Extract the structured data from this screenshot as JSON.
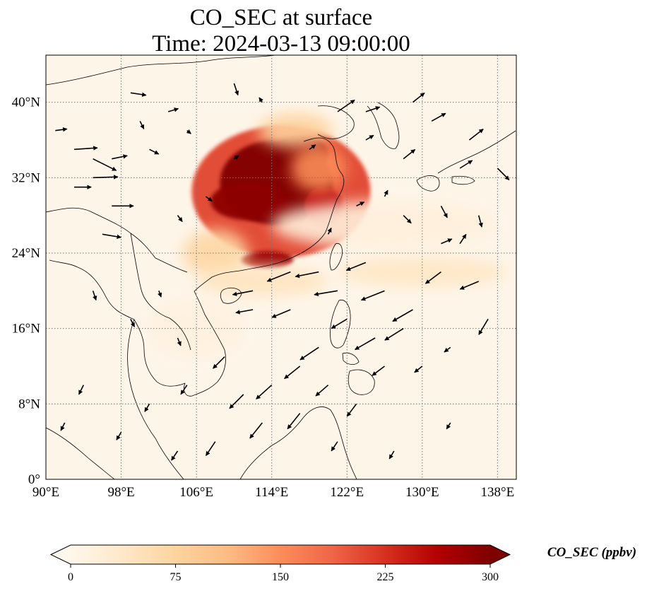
{
  "title": {
    "line1": "CO_SEC at surface",
    "line2": "Time: 2024-03-13 09:00:00"
  },
  "map": {
    "variable": "CO_SEC",
    "level": "surface",
    "projection": "PlateCarree",
    "lon_range": [
      90,
      140
    ],
    "lat_range": [
      0,
      45
    ],
    "gridlines": true,
    "xticks": [
      {
        "value": 90,
        "label": "90°E"
      },
      {
        "value": 98,
        "label": "98°E"
      },
      {
        "value": 106,
        "label": "106°E"
      },
      {
        "value": 114,
        "label": "114°E"
      },
      {
        "value": 122,
        "label": "122°E"
      },
      {
        "value": 130,
        "label": "130°E"
      },
      {
        "value": 138,
        "label": "138°E"
      }
    ],
    "yticks": [
      {
        "value": 0,
        "label": "0°"
      },
      {
        "value": 8,
        "label": "8°N"
      },
      {
        "value": 16,
        "label": "16°N"
      },
      {
        "value": 24,
        "label": "24°N"
      },
      {
        "value": 32,
        "label": "32°N"
      },
      {
        "value": 40,
        "label": "40°N"
      }
    ],
    "plumes": [
      {
        "lon": 115.0,
        "lat": 30.5,
        "rlon": 9.5,
        "rlat": 7.0,
        "value": 210
      },
      {
        "lon": 114.5,
        "lat": 31.5,
        "rlon": 6.0,
        "rlat": 4.5,
        "value": 300
      },
      {
        "lon": 117.0,
        "lat": 34.5,
        "rlon": 3.0,
        "rlat": 2.0,
        "value": 300
      },
      {
        "lon": 111.5,
        "lat": 29.5,
        "rlon": 4.0,
        "rlat": 2.0,
        "value": 290
      },
      {
        "lon": 119.5,
        "lat": 29.0,
        "rlon": 2.0,
        "rlat": 2.0,
        "value": 250
      },
      {
        "lon": 113.5,
        "lat": 23.3,
        "rlon": 2.8,
        "rlat": 0.9,
        "value": 280
      },
      {
        "lon": 116.5,
        "lat": 37.0,
        "rlon": 4.0,
        "rlat": 1.8,
        "value": 80
      },
      {
        "lon": 119.0,
        "lat": 33.0,
        "rlon": 3.0,
        "rlat": 2.5,
        "value": 150
      },
      {
        "lon": 108.0,
        "lat": 24.0,
        "rlon": 3.5,
        "rlat": 2.5,
        "value": 70
      },
      {
        "lon": 113.0,
        "lat": 21.0,
        "rlon": 7.0,
        "rlat": 1.6,
        "value": 45
      },
      {
        "lon": 130.0,
        "lat": 22.0,
        "rlon": 9.0,
        "rlat": 1.6,
        "value": 40
      },
      {
        "lon": 126.0,
        "lat": 27.0,
        "rlon": 12.0,
        "rlat": 2.5,
        "value": 18
      },
      {
        "lon": 106.0,
        "lat": 16.0,
        "rlon": 5.0,
        "rlat": 3.0,
        "value": 15
      }
    ],
    "wind_vectors": [
      {
        "lon": 91,
        "lat": 37,
        "u": 1.5,
        "v": 0.2
      },
      {
        "lon": 93,
        "lat": 35,
        "u": 3.0,
        "v": 0.2
      },
      {
        "lon": 93,
        "lat": 31,
        "u": 2.2,
        "v": 0.0
      },
      {
        "lon": 95,
        "lat": 34,
        "u": 3.0,
        "v": -1.5
      },
      {
        "lon": 95,
        "lat": 32,
        "u": 3.2,
        "v": 0.1
      },
      {
        "lon": 97,
        "lat": 34,
        "u": 2.0,
        "v": 0.4
      },
      {
        "lon": 97,
        "lat": 29,
        "u": 2.8,
        "v": 0.0
      },
      {
        "lon": 96,
        "lat": 26,
        "u": 2.4,
        "v": -0.4
      },
      {
        "lon": 99,
        "lat": 41,
        "u": 2.0,
        "v": -0.3
      },
      {
        "lon": 100,
        "lat": 38,
        "u": 0.5,
        "v": -1.0
      },
      {
        "lon": 101,
        "lat": 35,
        "u": 1.2,
        "v": -0.6
      },
      {
        "lon": 103,
        "lat": 39,
        "u": 1.3,
        "v": 0.4
      },
      {
        "lon": 105,
        "lat": 37,
        "u": 0.5,
        "v": -0.4
      },
      {
        "lon": 110,
        "lat": 42,
        "u": 0.5,
        "v": -1.5
      },
      {
        "lon": 113,
        "lat": 40,
        "u": -0.4,
        "v": 0.6
      },
      {
        "lon": 121,
        "lat": 39,
        "u": 2.2,
        "v": 1.5
      },
      {
        "lon": 124,
        "lat": 39,
        "u": 1.8,
        "v": 0.6
      },
      {
        "lon": 124,
        "lat": 36,
        "u": 1.0,
        "v": 0.6
      },
      {
        "lon": 129,
        "lat": 40,
        "u": 1.5,
        "v": 1.2
      },
      {
        "lon": 131,
        "lat": 38,
        "u": 1.8,
        "v": 1.0
      },
      {
        "lon": 135,
        "lat": 36,
        "u": 1.8,
        "v": 1.4
      },
      {
        "lon": 138,
        "lat": 33,
        "u": 1.5,
        "v": -1.5
      },
      {
        "lon": 134,
        "lat": 33,
        "u": 1.6,
        "v": 1.0
      },
      {
        "lon": 128,
        "lat": 34,
        "u": 1.5,
        "v": 1.2
      },
      {
        "lon": 132,
        "lat": 29,
        "u": 0.8,
        "v": -1.5
      },
      {
        "lon": 136,
        "lat": 28,
        "u": 0.4,
        "v": -1.5
      },
      {
        "lon": 134,
        "lat": 25,
        "u": 0.8,
        "v": 1.2
      },
      {
        "lon": 132,
        "lat": 25,
        "u": 1.4,
        "v": 0.6
      },
      {
        "lon": 128,
        "lat": 28,
        "u": 1.0,
        "v": -1.0
      },
      {
        "lon": 126,
        "lat": 30,
        "u": 0.4,
        "v": 0.8
      },
      {
        "lon": 116,
        "lat": 22,
        "u": -3.0,
        "v": -1.2
      },
      {
        "lon": 119,
        "lat": 22,
        "u": -3.0,
        "v": -0.6
      },
      {
        "lon": 121,
        "lat": 20,
        "u": -3.0,
        "v": -0.5
      },
      {
        "lon": 124,
        "lat": 23,
        "u": -2.5,
        "v": -1.0
      },
      {
        "lon": 126,
        "lat": 20,
        "u": -3.0,
        "v": -1.2
      },
      {
        "lon": 129,
        "lat": 18,
        "u": -2.6,
        "v": -1.5
      },
      {
        "lon": 132,
        "lat": 22,
        "u": -2.0,
        "v": -1.5
      },
      {
        "lon": 136,
        "lat": 21,
        "u": -2.4,
        "v": -1.0
      },
      {
        "lon": 137,
        "lat": 17,
        "u": -1.2,
        "v": -2.0
      },
      {
        "lon": 128,
        "lat": 16,
        "u": -2.4,
        "v": -1.5
      },
      {
        "lon": 125,
        "lat": 15,
        "u": -2.6,
        "v": -1.5
      },
      {
        "lon": 122,
        "lat": 17,
        "u": -2.0,
        "v": -1.2
      },
      {
        "lon": 112,
        "lat": 20,
        "u": -2.6,
        "v": -0.5
      },
      {
        "lon": 112,
        "lat": 18,
        "u": -2.2,
        "v": -0.4
      },
      {
        "lon": 116,
        "lat": 18,
        "u": -2.4,
        "v": -1.0
      },
      {
        "lon": 119,
        "lat": 14,
        "u": -2.4,
        "v": -1.6
      },
      {
        "lon": 117,
        "lat": 12,
        "u": -2.0,
        "v": -1.6
      },
      {
        "lon": 114,
        "lat": 10,
        "u": -2.0,
        "v": -1.8
      },
      {
        "lon": 111,
        "lat": 9,
        "u": -1.8,
        "v": -1.8
      },
      {
        "lon": 113,
        "lat": 6,
        "u": -1.6,
        "v": -2.0
      },
      {
        "lon": 117,
        "lat": 7,
        "u": -1.6,
        "v": -2.0
      },
      {
        "lon": 109,
        "lat": 13,
        "u": -1.5,
        "v": -1.5
      },
      {
        "lon": 105,
        "lat": 10,
        "u": -0.8,
        "v": -1.2
      },
      {
        "lon": 101,
        "lat": 8,
        "u": -0.6,
        "v": -1.0
      },
      {
        "lon": 108,
        "lat": 4,
        "u": -1.2,
        "v": -1.8
      },
      {
        "lon": 104,
        "lat": 3,
        "u": -0.8,
        "v": -1.2
      },
      {
        "lon": 98,
        "lat": 5,
        "u": -0.6,
        "v": -1.0
      },
      {
        "lon": 94,
        "lat": 10,
        "u": -0.6,
        "v": -1.2
      },
      {
        "lon": 92,
        "lat": 6,
        "u": -0.5,
        "v": -1.0
      },
      {
        "lon": 95,
        "lat": 20,
        "u": 0.4,
        "v": -1.2
      },
      {
        "lon": 99,
        "lat": 17,
        "u": 0.5,
        "v": -1.0
      },
      {
        "lon": 102,
        "lat": 20,
        "u": 0.3,
        "v": -0.8
      },
      {
        "lon": 104,
        "lat": 15,
        "u": 0.4,
        "v": -1.0
      },
      {
        "lon": 120,
        "lat": 10,
        "u": -1.6,
        "v": -1.4
      },
      {
        "lon": 123,
        "lat": 8,
        "u": -1.2,
        "v": -1.6
      },
      {
        "lon": 126,
        "lat": 12,
        "u": -1.6,
        "v": -1.2
      },
      {
        "lon": 130,
        "lat": 12,
        "u": -1.0,
        "v": -0.8
      },
      {
        "lon": 133,
        "lat": 14,
        "u": -0.8,
        "v": -0.6
      },
      {
        "lon": 121,
        "lat": 4,
        "u": -0.8,
        "v": -1.2
      },
      {
        "lon": 127,
        "lat": 3,
        "u": -0.6,
        "v": -1.0
      },
      {
        "lon": 133,
        "lat": 6,
        "u": -0.5,
        "v": -0.8
      },
      {
        "lon": 107,
        "lat": 30,
        "u": 0.8,
        "v": -0.6
      },
      {
        "lon": 104,
        "lat": 28,
        "u": 0.6,
        "v": -0.8
      },
      {
        "lon": 110,
        "lat": 34,
        "u": 0.6,
        "v": 0.4
      },
      {
        "lon": 120,
        "lat": 26,
        "u": 0.4,
        "v": 0.8
      },
      {
        "lon": 123,
        "lat": 29,
        "u": 1.0,
        "v": 0.5
      },
      {
        "lon": 118,
        "lat": 35,
        "u": 0.8,
        "v": 0.6
      }
    ]
  },
  "colorbar": {
    "cmap": "OrRd",
    "vmin": 0,
    "vmax": 300,
    "extend": "both",
    "ticks": [
      "0",
      "75",
      "150",
      "225",
      "300"
    ],
    "label": "CO_SEC (ppbv)",
    "colors": [
      "#fff7ec",
      "#fee8c8",
      "#fdd49e",
      "#fdbb84",
      "#fc8d59",
      "#ef6548",
      "#d7301f",
      "#b30000",
      "#7f0000"
    ]
  }
}
